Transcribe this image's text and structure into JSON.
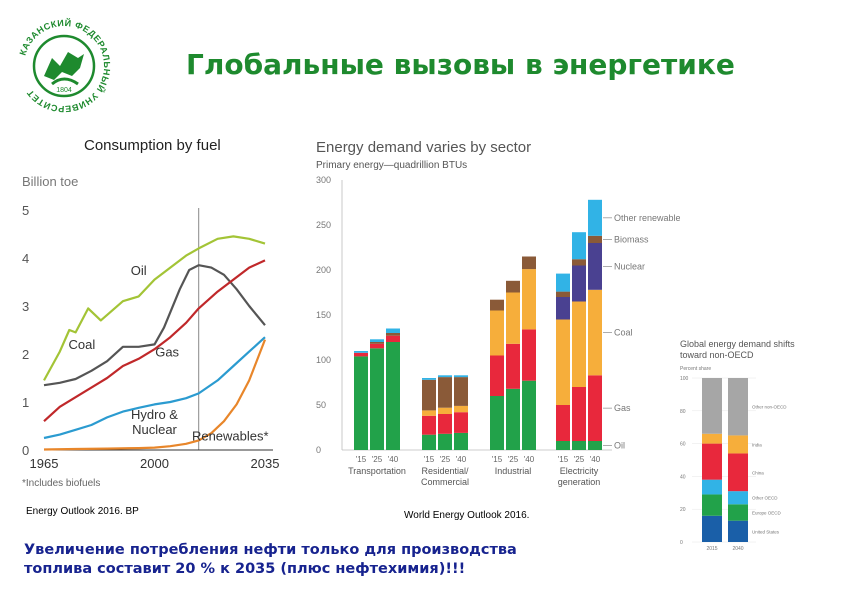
{
  "header": {
    "title": "Глобальные вызовы в энергетике",
    "logo": {
      "icon": "university-seal-icon",
      "ring_text": "КАЗАНСКИЙ ФЕДЕРАЛЬНЫЙ УНИВЕРСИТЕТ",
      "year": "1804",
      "color": "#1e8a2e"
    }
  },
  "sources": {
    "left": "Energy Outlook 2016. BP",
    "right": "World Energy Outlook 2016."
  },
  "conclusion": {
    "line1": "Увеличение потребления нефти только для производства",
    "line2": "топлива составит 20 % к 2035 (плюс нефтехимия)!!!"
  },
  "chart_data": [
    {
      "type": "line",
      "title": "Consumption by fuel",
      "ylabel": "Billion toe",
      "xlim": [
        1965,
        2035
      ],
      "ylim": [
        0,
        5
      ],
      "x_ticks": [
        "1965",
        "2000",
        "2035"
      ],
      "y_ticks": [
        "0",
        "1",
        "2",
        "3",
        "4",
        "5"
      ],
      "grid": false,
      "projection_start": 2014,
      "footnote": "*Includes biofuels",
      "series": [
        {
          "name": "Oil",
          "color": "#a3c436",
          "x": [
            1965,
            1970,
            1973,
            1975,
            1979,
            1983,
            1990,
            1995,
            2000,
            2005,
            2010,
            2014,
            2020,
            2025,
            2030,
            2035
          ],
          "y": [
            1.45,
            2.05,
            2.5,
            2.45,
            2.95,
            2.7,
            3.1,
            3.2,
            3.55,
            3.8,
            4.05,
            4.2,
            4.4,
            4.45,
            4.4,
            4.3
          ]
        },
        {
          "name": "Coal",
          "color": "#555555",
          "x": [
            1965,
            1970,
            1975,
            1980,
            1985,
            1990,
            1995,
            2000,
            2003,
            2008,
            2011,
            2014,
            2018,
            2022,
            2026,
            2030,
            2035
          ],
          "y": [
            1.35,
            1.4,
            1.48,
            1.65,
            1.85,
            2.15,
            2.15,
            2.2,
            2.55,
            3.35,
            3.75,
            3.85,
            3.8,
            3.65,
            3.35,
            3.0,
            2.6
          ]
        },
        {
          "name": "Gas",
          "color": "#c0282a",
          "x": [
            1965,
            1970,
            1975,
            1980,
            1985,
            1990,
            1995,
            2000,
            2005,
            2010,
            2014,
            2020,
            2025,
            2030,
            2035
          ],
          "y": [
            0.6,
            0.9,
            1.1,
            1.3,
            1.5,
            1.75,
            1.9,
            2.1,
            2.35,
            2.65,
            2.95,
            3.3,
            3.55,
            3.8,
            3.95
          ]
        },
        {
          "name": "Hydro & Nuclear",
          "color": "#2b9bd0",
          "x": [
            1965,
            1970,
            1975,
            1980,
            1985,
            1990,
            1995,
            2000,
            2005,
            2010,
            2014,
            2020,
            2025,
            2030,
            2035
          ],
          "y": [
            0.25,
            0.32,
            0.42,
            0.52,
            0.68,
            0.8,
            0.88,
            0.95,
            1.0,
            1.08,
            1.18,
            1.45,
            1.75,
            2.05,
            2.35
          ]
        },
        {
          "name": "Renewables*",
          "color": "#e8862a",
          "x": [
            1965,
            1975,
            1985,
            1995,
            2000,
            2005,
            2010,
            2014,
            2018,
            2022,
            2026,
            2030,
            2035
          ],
          "y": [
            0.01,
            0.02,
            0.03,
            0.04,
            0.05,
            0.08,
            0.13,
            0.2,
            0.35,
            0.6,
            0.95,
            1.45,
            2.3
          ]
        }
      ],
      "labels": [
        {
          "text": "Oil",
          "x": 1995,
          "y": 3.65
        },
        {
          "text": "Coal",
          "x": 1977,
          "y": 2.1
        },
        {
          "text": "Gas",
          "x": 2004,
          "y": 1.95
        },
        {
          "text": "Hydro & Nuclear",
          "x": 2000,
          "y": 0.65
        },
        {
          "text": "Renewables*",
          "x": 2024,
          "y": 0.2
        }
      ]
    },
    {
      "type": "bar",
      "stacked": true,
      "title": "Energy demand varies by sector",
      "subtitle": "Primary energy—quadrillion BTUs",
      "ylim": [
        0,
        300
      ],
      "y_ticks": [
        "0",
        "50",
        "100",
        "150",
        "200",
        "250",
        "300"
      ],
      "bar_labels": [
        "'15",
        "'25",
        "'40"
      ],
      "fuels": [
        {
          "name": "Oil",
          "color": "#22a24a"
        },
        {
          "name": "Gas",
          "color": "#e8283c"
        },
        {
          "name": "Coal",
          "color": "#f6ae3b"
        },
        {
          "name": "Nuclear",
          "color": "#4a4191"
        },
        {
          "name": "Biomass",
          "color": "#8a5a38"
        },
        {
          "name": "Other renewables",
          "color": "#31b3e6"
        }
      ],
      "groups": [
        {
          "label": [
            "Transportation"
          ],
          "bars": [
            [
              104,
              4,
              0,
              0,
              0,
              2
            ],
            [
              113,
              5,
              0,
              0,
              2,
              3
            ],
            [
              120,
              7,
              0,
              0,
              3,
              5
            ]
          ]
        },
        {
          "label": [
            "Residential/",
            "Commercial"
          ],
          "bars": [
            [
              17,
              21,
              6,
              0,
              34,
              2
            ],
            [
              18,
              22,
              7,
              0,
              34,
              2
            ],
            [
              19,
              23,
              7,
              0,
              32,
              2
            ]
          ]
        },
        {
          "label": [
            "Industrial"
          ],
          "bars": [
            [
              60,
              45,
              50,
              0,
              12,
              0
            ],
            [
              68,
              50,
              57,
              0,
              13,
              0
            ],
            [
              77,
              57,
              67,
              0,
              14,
              0
            ]
          ]
        },
        {
          "label": [
            "Electricity",
            "generation"
          ],
          "bars": [
            [
              10,
              40,
              95,
              25,
              6,
              20
            ],
            [
              10,
              60,
              95,
              40,
              7,
              30
            ],
            [
              10,
              73,
              95,
              52,
              8,
              40
            ]
          ]
        }
      ]
    },
    {
      "type": "bar",
      "stacked": true,
      "title": "Global energy demand shifts toward non-OECD",
      "subtitle": "Percent share",
      "categories": [
        "2015",
        "2040"
      ],
      "ylim": [
        0,
        100
      ],
      "y_ticks": [
        "0",
        "20",
        "40",
        "60",
        "80",
        "100"
      ],
      "series": [
        {
          "name": "United States",
          "color": "#1a5fa8",
          "values": [
            16,
            13
          ]
        },
        {
          "name": "Europe OECD",
          "color": "#22a24a",
          "values": [
            13,
            10
          ]
        },
        {
          "name": "Other OECD",
          "color": "#31b3e6",
          "values": [
            9,
            8
          ]
        },
        {
          "name": "China",
          "color": "#e8283c",
          "values": [
            22,
            23
          ]
        },
        {
          "name": "India",
          "color": "#f6ae3b",
          "values": [
            6,
            11
          ]
        },
        {
          "name": "Other non-OECD",
          "color": "#a6a6a6",
          "values": [
            34,
            35
          ]
        }
      ]
    }
  ]
}
